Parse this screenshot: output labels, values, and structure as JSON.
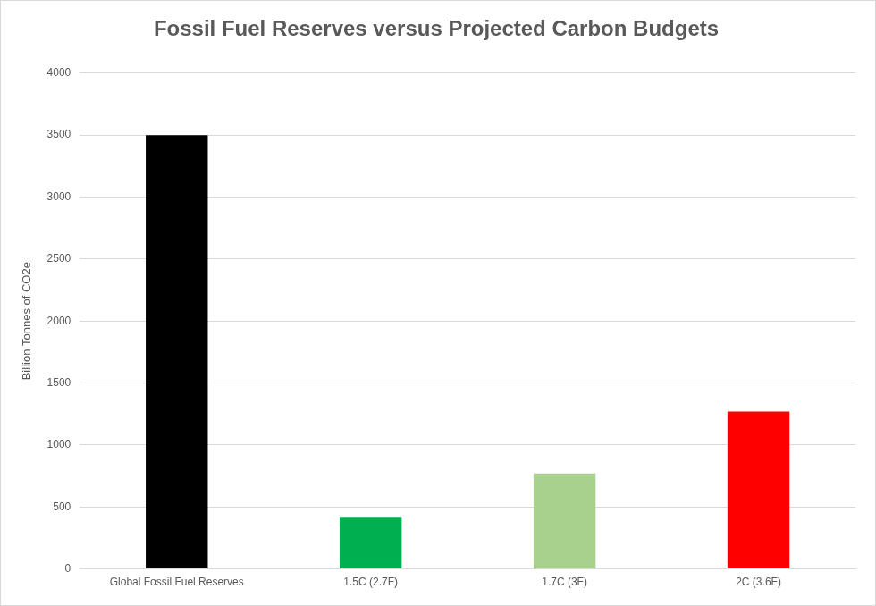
{
  "chart_data": {
    "type": "bar",
    "title": "Fossil Fuel Reserves versus Projected Carbon Budgets",
    "y_label": "Billion Tonnes of CO2e",
    "categories": [
      "Global Fossil Fuel Reserves",
      "1.5C (2.7F)",
      "1.7C (3F)",
      "2C (3.6F)"
    ],
    "values": [
      3500,
      420,
      770,
      1270
    ],
    "colors": [
      "#000000",
      "#00b050",
      "#a9d18e",
      "#ff0000"
    ],
    "ylim": [
      0,
      4000
    ],
    "yticks": [
      0,
      500,
      1000,
      1500,
      2000,
      2500,
      3000,
      3500,
      4000
    ],
    "grid": true
  }
}
